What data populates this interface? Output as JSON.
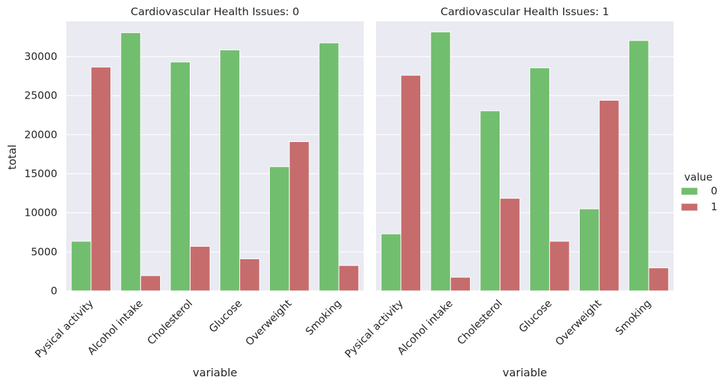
{
  "chart_data": {
    "type": "bar",
    "facet_variable_values": [
      "0",
      "1"
    ],
    "xlabel": "variable",
    "ylabel": "total",
    "ylim": [
      0,
      34500
    ],
    "yticks": [
      0,
      5000,
      10000,
      15000,
      20000,
      25000,
      30000
    ],
    "grid": true,
    "legend": {
      "title": "value",
      "position": "right",
      "entries": [
        "0",
        "1"
      ]
    },
    "colors": {
      "0": "#72be6f",
      "1": "#c76c6c"
    },
    "panels": [
      {
        "title": "Cardiovascular Health Issues: 0",
        "categories": [
          "Pysical activity",
          "Alcohol intake",
          "Cholesterol",
          "Glucose",
          "Overweight",
          "Smoking"
        ],
        "series": [
          {
            "name": "0",
            "values": [
              6350,
              33050,
              29300,
              30850,
              15900,
              31750
            ]
          },
          {
            "name": "1",
            "values": [
              28650,
              1950,
              5700,
              4100,
              19100,
              3250
            ]
          }
        ]
      },
      {
        "title": "Cardiovascular Health Issues: 1",
        "categories": [
          "Pysical activity",
          "Alcohol intake",
          "Cholesterol",
          "Glucose",
          "Overweight",
          "Smoking"
        ],
        "series": [
          {
            "name": "0",
            "values": [
              7300,
              33150,
              23050,
              28550,
              10500,
              32050
            ]
          },
          {
            "name": "1",
            "values": [
              27600,
              1750,
              11850,
              6350,
              24400,
              2950
            ]
          }
        ]
      }
    ]
  }
}
